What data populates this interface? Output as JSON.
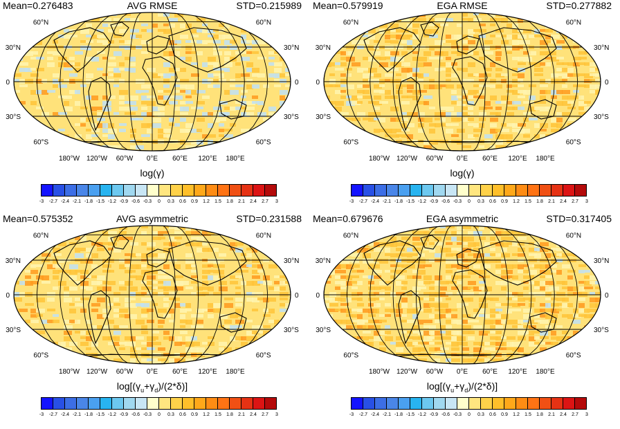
{
  "palette": [
    "#1414ff",
    "#2850e6",
    "#3c6ee6",
    "#4a86e8",
    "#4aa0f0",
    "#28b4f0",
    "#6cc8f0",
    "#a0d8f0",
    "#c8e6f5",
    "#ffffcc",
    "#ffe680",
    "#ffd24a",
    "#ffbf2a",
    "#ffa81a",
    "#ff8c14",
    "#ff7314",
    "#f05014",
    "#e63214",
    "#dc1414",
    "#b40a0a"
  ],
  "colorbar_ticks": [
    "-3",
    "-2.7",
    "-2.4",
    "-2.1",
    "-1.8",
    "-1.5",
    "-1.2",
    "-0.9",
    "-0.6",
    "-0.3",
    "0",
    "0.3",
    "0.6",
    "0.9",
    "1.2",
    "1.5",
    "1.8",
    "2.1",
    "2.4",
    "2.7",
    "3"
  ],
  "lat_labels": [
    "60°N",
    "30°N",
    "0",
    "30°S",
    "60°S"
  ],
  "lon_labels": [
    "180°W",
    "120°W",
    "60°W",
    "0°E",
    "60°E",
    "120°E",
    "180°E"
  ],
  "field_colors": {
    "base": "#ffe27a",
    "light": "#fff4b0",
    "blue": "#bfe0f5",
    "warm": "#ffc43a",
    "hot": "#ff9a1e"
  },
  "panels": [
    {
      "id": "avg-rmse",
      "mean": "Mean=0.276483",
      "title": "AVG RMSE",
      "std": "STD=0.215989",
      "xlabel_type": "gamma",
      "xlabel_prefix": "log(",
      "xlabel_sym": "γ",
      "xlabel_suffix": ")"
    },
    {
      "id": "ega-rmse",
      "mean": "Mean=0.579919",
      "title": "EGA RMSE",
      "std": "STD=0.277882",
      "xlabel_type": "gamma",
      "xlabel_prefix": "log(",
      "xlabel_sym": "γ",
      "xlabel_suffix": ")"
    },
    {
      "id": "avg-asym",
      "mean": "Mean=0.575352",
      "title": "AVG asymmetric",
      "std": "STD=0.231588",
      "xlabel_type": "asym",
      "xl1": "log[(",
      "g": "γ",
      "u": "u",
      "plus": "+",
      "d": "d",
      "xl2": ")/(2*",
      "delta": "δ",
      "xl3": ")]"
    },
    {
      "id": "ega-asym",
      "mean": "Mean=0.679676",
      "title": "EGA asymmetric",
      "std": "STD=0.317405",
      "xlabel_type": "asym",
      "xl1": "log[(",
      "g": "γ",
      "u": "u",
      "plus": "+",
      "d": "d",
      "xl2": ")/(2*",
      "delta": "δ",
      "xl3": ")]"
    }
  ]
}
